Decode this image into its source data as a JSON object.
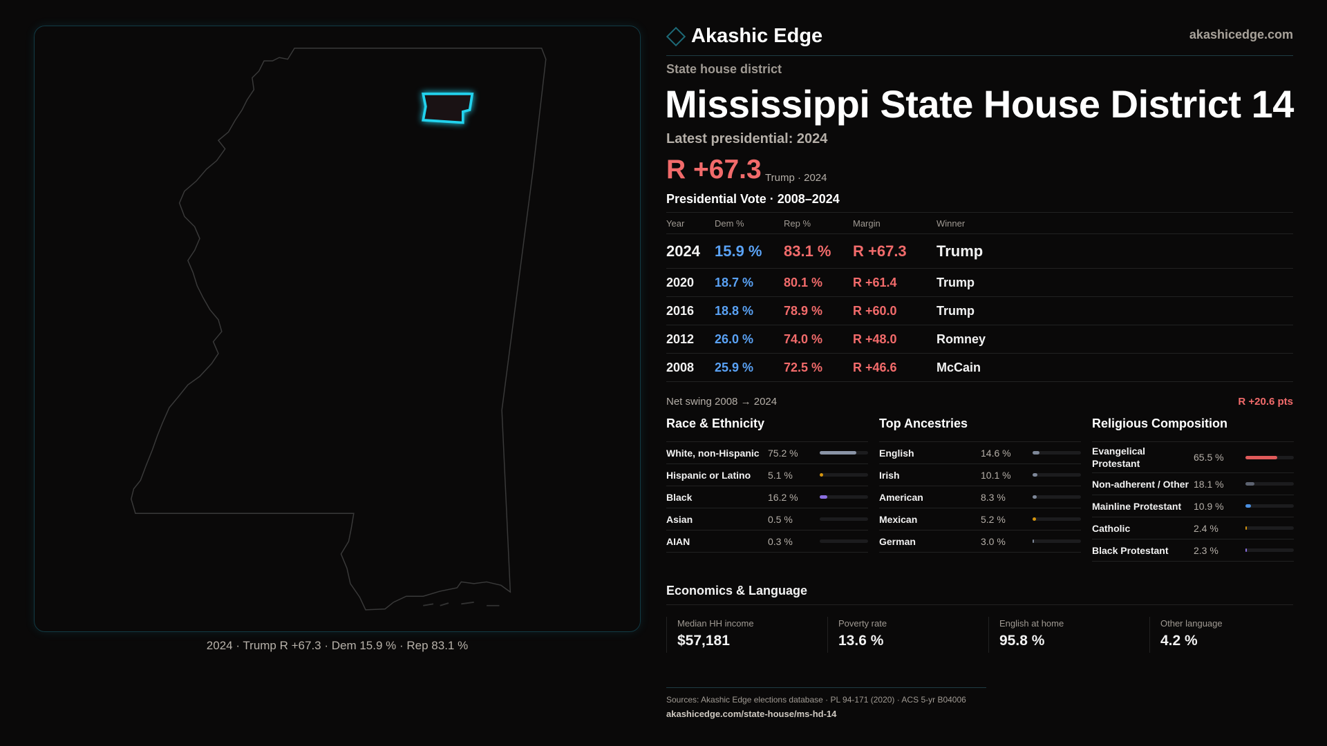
{
  "brand": {
    "name": "Akashic Edge",
    "site": "akashicedge.com"
  },
  "header": {
    "kicker": "State house district",
    "title": "Mississippi State House District 14",
    "latest": "Latest presidential: 2024",
    "margin": "R +67.3",
    "margin_sub": "Trump · 2024"
  },
  "map": {
    "caption": "2024 · Trump R +67.3 · Dem 15.9 % · Rep 83.1 %",
    "highlight_color": "#22d3ee"
  },
  "votes": {
    "title": "Presidential Vote · 2008–2024",
    "columns": [
      "Year",
      "Dem %",
      "Rep %",
      "Margin",
      "Winner"
    ],
    "rows": [
      [
        "2024",
        "15.9 %",
        "83.1 %",
        "R +67.3",
        "Trump"
      ],
      [
        "2020",
        "18.7 %",
        "80.1 %",
        "R +61.4",
        "Trump"
      ],
      [
        "2016",
        "18.8 %",
        "78.9 %",
        "R +60.0",
        "Trump"
      ],
      [
        "2012",
        "26.0 %",
        "74.0 %",
        "R +48.0",
        "Romney"
      ],
      [
        "2008",
        "25.9 %",
        "72.5 %",
        "R +46.6",
        "McCain"
      ]
    ],
    "swing_label": "Net swing 2008 → 2024",
    "swing_value": "R +20.6 pts"
  },
  "race": {
    "title": "Race & Ethnicity",
    "items": [
      {
        "label": "White, non-Hispanic",
        "value": "75.2 %",
        "pct": 75.2,
        "color": "#8a94a6"
      },
      {
        "label": "Hispanic or Latino",
        "value": "5.1 %",
        "pct": 5.1,
        "color": "#d4950f"
      },
      {
        "label": "Black",
        "value": "16.2 %",
        "pct": 16.2,
        "color": "#8b6fe0"
      },
      {
        "label": "Asian",
        "value": "0.5 %",
        "pct": 0.5,
        "color": "#3a3a3e"
      },
      {
        "label": "AIAN",
        "value": "0.3 %",
        "pct": 0.3,
        "color": "#3a3a3e"
      }
    ]
  },
  "ancestry": {
    "title": "Top Ancestries",
    "items": [
      {
        "label": "English",
        "value": "14.6 %",
        "pct": 14.6,
        "color": "#7d8798"
      },
      {
        "label": "Irish",
        "value": "10.1 %",
        "pct": 10.1,
        "color": "#7d8798"
      },
      {
        "label": "American",
        "value": "8.3 %",
        "pct": 8.3,
        "color": "#7d8798"
      },
      {
        "label": "Mexican",
        "value": "5.2 %",
        "pct": 5.2,
        "color": "#d4950f"
      },
      {
        "label": "German",
        "value": "3.0 %",
        "pct": 3.0,
        "color": "#7d8798"
      }
    ]
  },
  "religion": {
    "title": "Religious Composition",
    "items": [
      {
        "label": "Evangelical Protestant",
        "value": "65.5 %",
        "pct": 65.5,
        "color": "#e05a5a"
      },
      {
        "label": "Non-adherent / Other",
        "value": "18.1 %",
        "pct": 18.1,
        "color": "#5c6270"
      },
      {
        "label": "Mainline Protestant",
        "value": "10.9 %",
        "pct": 10.9,
        "color": "#4a8fe0"
      },
      {
        "label": "Catholic",
        "value": "2.4 %",
        "pct": 2.4,
        "color": "#d4950f"
      },
      {
        "label": "Black Protestant",
        "value": "2.3 %",
        "pct": 2.3,
        "color": "#8b6fe0"
      }
    ]
  },
  "economics": {
    "title": "Economics & Language",
    "cards": [
      {
        "label": "Median HH income",
        "value": "$57,181"
      },
      {
        "label": "Poverty rate",
        "value": "13.6 %"
      },
      {
        "label": "English at home",
        "value": "95.8 %"
      },
      {
        "label": "Other language",
        "value": "4.2 %"
      }
    ]
  },
  "footer": {
    "sources": "Sources: Akashic Edge elections database · PL 94-171 (2020) · ACS 5-yr B04006",
    "url": "akashicedge.com/state-house/ms-hd-14"
  }
}
